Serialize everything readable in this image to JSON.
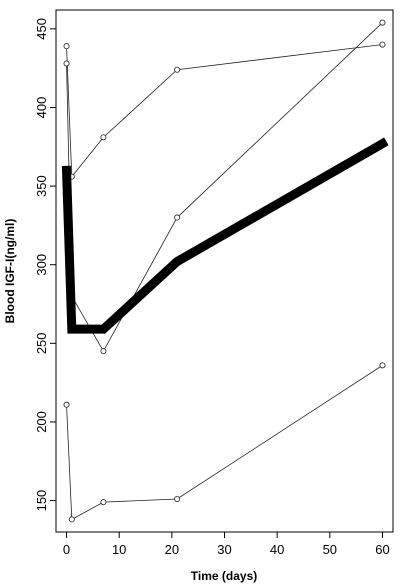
{
  "chart_data": {
    "type": "line",
    "title": "",
    "xlabel": "Time (days)",
    "ylabel": "Blood IGF-I(ng/ml)",
    "xlim": [
      -2,
      62
    ],
    "ylim": [
      130,
      462
    ],
    "x_ticks": [
      0,
      10,
      20,
      30,
      40,
      50,
      60
    ],
    "y_ticks": [
      150,
      200,
      250,
      300,
      350,
      400,
      450
    ],
    "grid": false,
    "legend": "none",
    "series": [
      {
        "style": "thin-markers",
        "x": [
          0,
          1,
          7,
          21,
          60
        ],
        "y": [
          439,
          356,
          381,
          424,
          440
        ]
      },
      {
        "style": "thin-markers",
        "x": [
          0,
          1,
          7,
          21,
          60
        ],
        "y": [
          428,
          280,
          245,
          330,
          454
        ]
      },
      {
        "style": "thin-markers",
        "x": [
          0,
          1,
          7,
          21,
          60
        ],
        "y": [
          211,
          138,
          149,
          151,
          236
        ]
      },
      {
        "style": "thick-mean",
        "x": [
          0,
          1,
          7,
          21,
          60
        ],
        "y": [
          360,
          259,
          259,
          302,
          377
        ]
      }
    ]
  }
}
